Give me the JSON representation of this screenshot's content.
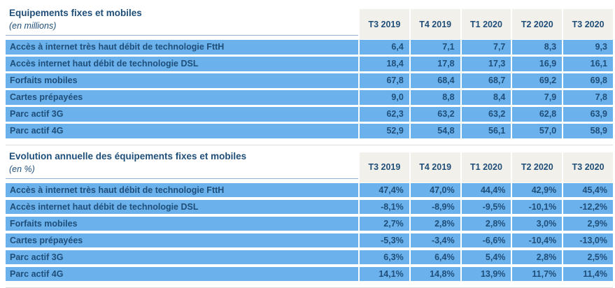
{
  "quarters": [
    "T3 2019",
    "T4 2019",
    "T1 2020",
    "T2 2020",
    "T3 2020"
  ],
  "colors": {
    "cell_blue": "#6bb1ec",
    "text_navy": "#1f4e79",
    "header_cream": "#f2f0ea",
    "title_underline": "#95b3d7",
    "divider_gray": "#dbdbdb"
  },
  "tables": [
    {
      "title": "Equipements fixes et mobiles",
      "subtitle": "(en millions)",
      "rows": [
        {
          "label": "Accès à internet très haut débit de technologie FttH",
          "values": [
            "6,4",
            "7,1",
            "7,7",
            "8,3",
            "9,3"
          ]
        },
        {
          "label": "Accès internet haut débit de technologie DSL",
          "values": [
            "18,4",
            "17,8",
            "17,3",
            "16,9",
            "16,1"
          ]
        },
        {
          "label": "Forfaits mobiles",
          "values": [
            "67,8",
            "68,4",
            "68,7",
            "69,2",
            "69,8"
          ]
        },
        {
          "label": "Cartes prépayées",
          "values": [
            "9,0",
            "8,8",
            "8,4",
            "7,9",
            "7,8"
          ]
        },
        {
          "label": "Parc actif 3G",
          "values": [
            "62,3",
            "63,2",
            "63,2",
            "62,8",
            "63,9"
          ]
        },
        {
          "label": "Parc actif 4G",
          "values": [
            "52,9",
            "54,8",
            "56,1",
            "57,0",
            "58,9"
          ]
        }
      ]
    },
    {
      "title": "Evolution annuelle des équipements fixes et mobiles",
      "subtitle": "(en %)",
      "rows": [
        {
          "label": "Accès à internet très haut débit de technologie FttH",
          "values": [
            "47,4%",
            "47,0%",
            "44,4%",
            "42,9%",
            "45,4%"
          ]
        },
        {
          "label": "Accès internet haut débit de technologie DSL",
          "values": [
            "-8,1%",
            "-8,9%",
            "-9,5%",
            "-10,1%",
            "-12,2%"
          ]
        },
        {
          "label": "Forfaits mobiles",
          "values": [
            "2,7%",
            "2,8%",
            "2,8%",
            "3,0%",
            "2,9%"
          ]
        },
        {
          "label": "Cartes prépayées",
          "values": [
            "-5,3%",
            "-3,4%",
            "-6,6%",
            "-10,4%",
            "-13,0%"
          ]
        },
        {
          "label": "Parc actif 3G",
          "values": [
            "6,3%",
            "6,4%",
            "5,4%",
            "2,8%",
            "2,5%"
          ]
        },
        {
          "label": "Parc actif 4G",
          "values": [
            "14,1%",
            "14,8%",
            "13,9%",
            "11,7%",
            "11,4%"
          ]
        }
      ]
    }
  ]
}
